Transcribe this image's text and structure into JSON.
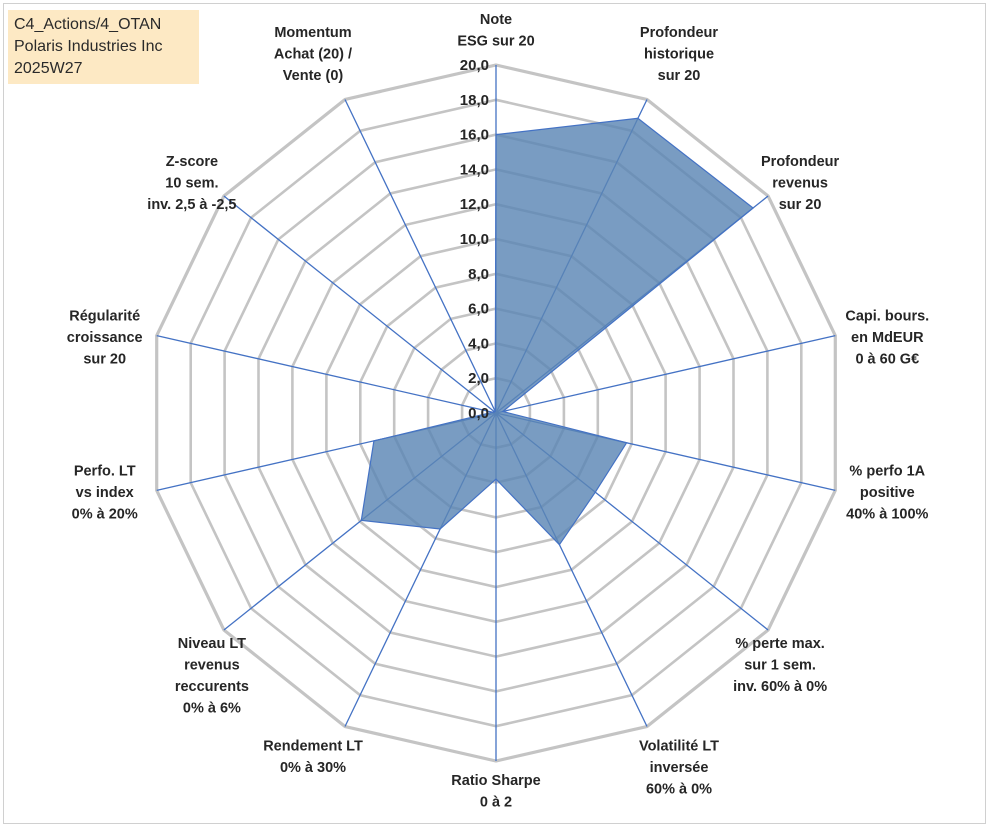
{
  "header": {
    "line1": "C4_Actions/4_OTAN",
    "line2": "Polaris Industries Inc",
    "line3": "2025W27"
  },
  "colors": {
    "fill": "#5b86b5",
    "stroke": "#4472c4",
    "grid": "#c4c4c4",
    "spoke": "#4472c4",
    "title_bg": "#fde9c4"
  },
  "chart_data": {
    "type": "radar",
    "rlim": [
      0,
      20
    ],
    "ticks": [
      "0,0",
      "2,0",
      "4,0",
      "6,0",
      "8,0",
      "10,0",
      "12,0",
      "14,0",
      "16,0",
      "18,0",
      "20,0"
    ],
    "grid": true,
    "legend": "none",
    "axes": [
      [
        "Note",
        "ESG sur 20"
      ],
      [
        "Profondeur",
        "historique",
        "sur 20"
      ],
      [
        "Profondeur",
        "revenus",
        "sur 20"
      ],
      [
        "Capi. bours.",
        "en MdEUR",
        "0 à 60 G€"
      ],
      [
        "% perfo 1A",
        "positive",
        "40% à 100%"
      ],
      [
        "% perte max.",
        "sur 1 sem.",
        "inv. 60% à 0%"
      ],
      [
        "Volatilité LT",
        "inversée",
        "60% à 0%"
      ],
      [
        "Ratio Sharpe",
        "0 à 2"
      ],
      [
        "Rendement LT",
        "0% à 30%"
      ],
      [
        "Niveau LT",
        "revenus",
        "reccurents",
        "0% à 6%"
      ],
      [
        "Perfo. LT",
        "vs index",
        "0% à 20%"
      ],
      [
        "Régularité",
        "croissance",
        "sur 20"
      ],
      [
        "Z-score",
        "10 sem.",
        "inv. 2,5 à -2,5"
      ],
      [
        "Momentum",
        "Achat (20) /",
        "Vente (0)"
      ]
    ],
    "values": [
      16.0,
      18.8,
      18.9,
      0.4,
      7.7,
      7.3,
      8.4,
      3.8,
      7.4,
      9.9,
      7.2,
      0.2,
      0.1,
      0.1
    ]
  }
}
